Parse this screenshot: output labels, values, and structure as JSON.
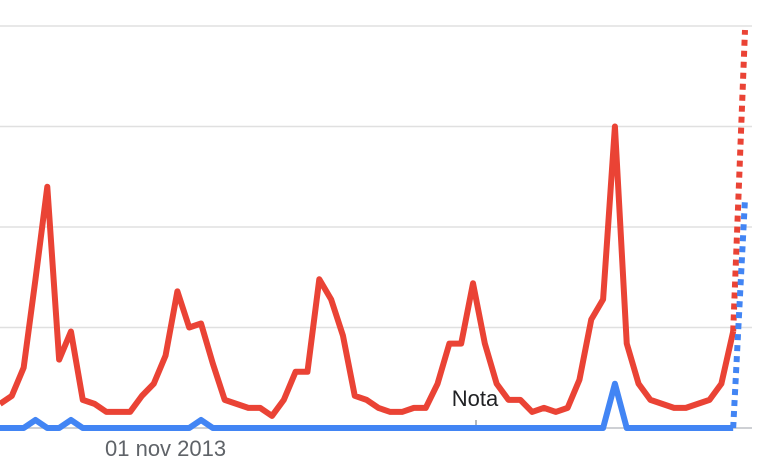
{
  "chart_data": {
    "type": "line",
    "categories": [
      null,
      null,
      null,
      null,
      null,
      null,
      null,
      null,
      null,
      null,
      null,
      null,
      null,
      null,
      "01 nov 2013",
      null,
      null,
      null,
      null,
      null,
      null,
      null,
      null,
      null,
      null,
      null,
      null,
      null,
      null,
      null,
      null,
      null,
      null,
      null,
      null,
      null,
      null,
      null,
      null,
      null,
      null,
      null,
      null,
      null,
      null,
      null,
      null,
      null,
      null,
      null,
      null,
      null,
      null,
      null,
      null,
      null,
      null,
      null,
      null,
      null,
      null,
      null,
      null,
      null
    ],
    "series": [
      {
        "color": "#ea4335",
        "values": [
          6,
          8,
          15,
          37,
          60,
          17,
          24,
          7,
          6,
          4,
          4,
          4,
          8,
          11,
          18,
          34,
          25,
          26,
          16,
          7,
          6,
          5,
          5,
          3,
          7,
          14,
          14,
          37,
          32,
          23,
          8,
          7,
          5,
          4,
          4,
          5,
          5,
          11,
          21,
          21,
          36,
          21,
          11,
          7,
          7,
          4,
          5,
          4,
          5,
          12,
          27,
          32,
          75,
          21,
          11,
          7,
          6,
          5,
          5,
          6,
          7,
          11,
          24,
          99
        ]
      },
      {
        "color": "#4285f4",
        "values": [
          0,
          0,
          0,
          2,
          0,
          0,
          2,
          0,
          0,
          0,
          0,
          0,
          0,
          0,
          0,
          0,
          0,
          2,
          0,
          0,
          0,
          0,
          0,
          0,
          0,
          0,
          0,
          0,
          0,
          0,
          0,
          0,
          0,
          0,
          0,
          0,
          0,
          0,
          0,
          0,
          0,
          0,
          0,
          0,
          0,
          0,
          0,
          0,
          0,
          0,
          0,
          0,
          11,
          0,
          0,
          0,
          0,
          0,
          0,
          0,
          0,
          0,
          0,
          57
        ]
      }
    ],
    "annotation": "Nota",
    "ylim": [
      0,
      100
    ],
    "yticks": [
      0,
      25,
      50,
      75,
      100
    ],
    "grid": true
  }
}
